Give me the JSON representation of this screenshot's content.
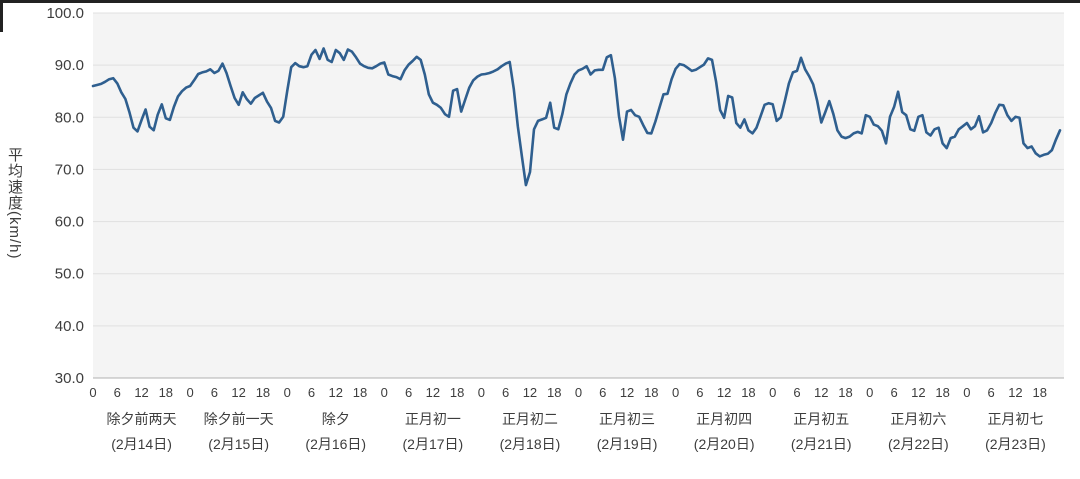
{
  "chart_data": {
    "type": "line",
    "title": "",
    "xlabel": "",
    "ylabel": "平均速度(km/h)",
    "ylim": [
      30,
      100
    ],
    "y_tick_labels": [
      "30.0",
      "40.0",
      "50.0",
      "60.0",
      "70.0",
      "80.0",
      "90.0",
      "100.0"
    ],
    "hour_ticks": [
      "0",
      "6",
      "12",
      "18"
    ],
    "hours_per_day": 24,
    "grid": "horizontal",
    "legend": "none",
    "line_color": "#2f5f8f",
    "plot_bg": "#f4f4f4",
    "grid_color": "#e0e0e0",
    "axis_color": "#b0b0b0",
    "text_color": "#3d3d3d",
    "days": [
      {
        "label": "除夕前两天",
        "date": "(2月14日)",
        "values": [
          86.0,
          86.2,
          86.4,
          86.8,
          87.3,
          87.5,
          86.5,
          84.8,
          83.5,
          81.0,
          78.0,
          77.3,
          79.5,
          81.5,
          78.2,
          77.5,
          80.5,
          82.5,
          79.8,
          79.5,
          82.0,
          84.0,
          85.0,
          85.7
        ]
      },
      {
        "label": "除夕前一天",
        "date": "(2月15日)",
        "values": [
          86.0,
          87.1,
          88.3,
          88.6,
          88.8,
          89.2,
          88.5,
          88.9,
          90.3,
          88.5,
          86.0,
          83.7,
          82.4,
          84.8,
          83.5,
          82.6,
          83.7,
          84.2,
          84.7,
          83.0,
          81.8,
          79.3,
          79.0,
          80.1
        ]
      },
      {
        "label": "除夕",
        "date": "(2月16日)",
        "values": [
          85.0,
          89.6,
          90.4,
          89.8,
          89.6,
          89.8,
          92.0,
          92.9,
          91.2,
          93.2,
          91.0,
          90.6,
          92.9,
          92.3,
          91.0,
          93.0,
          92.6,
          91.5,
          90.3,
          89.8,
          89.5,
          89.4,
          89.8,
          90.3
        ]
      },
      {
        "label": "正月初一",
        "date": "(2月17日)",
        "values": [
          90.5,
          88.2,
          87.9,
          87.7,
          87.3,
          89.0,
          90.1,
          90.8,
          91.6,
          91.0,
          88.2,
          84.4,
          82.8,
          82.4,
          81.8,
          80.6,
          80.1,
          85.1,
          85.4,
          81.1,
          83.4,
          85.7,
          87.1,
          87.8
        ]
      },
      {
        "label": "正月初二",
        "date": "(2月18日)",
        "values": [
          88.2,
          88.3,
          88.5,
          88.8,
          89.2,
          89.8,
          90.3,
          90.6,
          85.4,
          78.3,
          72.5,
          67.0,
          69.5,
          77.7,
          79.3,
          79.6,
          79.9,
          82.8,
          78.0,
          77.7,
          80.6,
          84.4,
          86.5,
          88.2
        ]
      },
      {
        "label": "正月初三",
        "date": "(2月19日)",
        "values": [
          89.0,
          89.3,
          89.8,
          88.2,
          89.0,
          89.1,
          89.1,
          91.5,
          91.9,
          87.5,
          80.2,
          75.7,
          81.1,
          81.4,
          80.4,
          80.1,
          78.5,
          77.0,
          76.9,
          79.2,
          81.8,
          84.4,
          84.5,
          87.3
        ]
      },
      {
        "label": "正月初四",
        "date": "(2月20日)",
        "values": [
          89.3,
          90.2,
          90.0,
          89.5,
          88.9,
          89.1,
          89.6,
          90.1,
          91.3,
          91.0,
          86.8,
          81.4,
          79.9,
          84.1,
          83.8,
          78.9,
          78.0,
          79.6,
          77.5,
          76.9,
          78.0,
          80.2,
          82.4,
          82.7
        ]
      },
      {
        "label": "正月初五",
        "date": "(2月21日)",
        "values": [
          82.5,
          79.3,
          80.0,
          83.1,
          86.5,
          88.6,
          88.9,
          91.4,
          89.2,
          87.9,
          86.3,
          83.1,
          79.0,
          81.0,
          83.1,
          80.6,
          77.5,
          76.3,
          76.0,
          76.3,
          76.9,
          77.2,
          76.9,
          80.4
        ]
      },
      {
        "label": "正月初六",
        "date": "(2月22日)",
        "values": [
          80.1,
          78.6,
          78.3,
          77.4,
          75.0,
          80.1,
          82.0,
          84.9,
          81.0,
          80.4,
          77.7,
          77.4,
          80.1,
          80.4,
          77.1,
          76.5,
          77.7,
          78.0,
          75.0,
          74.1,
          76.0,
          76.3,
          77.7,
          78.3
        ]
      },
      {
        "label": "正月初七",
        "date": "(2月23日)",
        "values": [
          78.9,
          77.7,
          78.3,
          80.2,
          77.1,
          77.5,
          78.9,
          80.8,
          82.4,
          82.3,
          80.4,
          79.3,
          80.1,
          79.9,
          75.0,
          74.1,
          74.4,
          73.1,
          72.5,
          72.8,
          73.0,
          73.7,
          75.7,
          77.5
        ]
      }
    ]
  }
}
